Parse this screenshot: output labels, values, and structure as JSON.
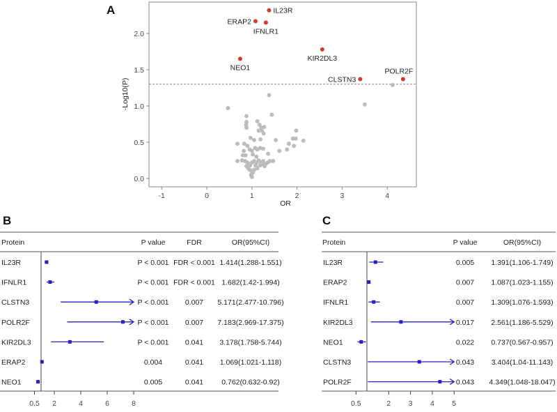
{
  "chart_data": [
    {
      "type": "scatter",
      "panel": "A",
      "xlabel": "OR",
      "ylabel": "-Log10(P)",
      "xlim": [
        -1.3,
        4.65
      ],
      "ylim": [
        -0.1,
        2.4
      ],
      "xticks": [
        "-1",
        "0",
        "1",
        "2",
        "3",
        "4"
      ],
      "yticks": [
        "0.0",
        "0.5",
        "1.0",
        "1.5",
        "2.0"
      ],
      "threshold": 1.3,
      "colors": {
        "significant": "#d33a2c",
        "other": "#bdbdbd",
        "threshold": "#888888"
      },
      "significant": [
        {
          "label": "IL23R",
          "x": 1.38,
          "y": 2.32
        },
        {
          "label": "ERAP2",
          "x": 1.08,
          "y": 2.17
        },
        {
          "label": "IFNLR1",
          "x": 1.31,
          "y": 2.15
        },
        {
          "label": "KIR2DL3",
          "x": 2.56,
          "y": 1.78
        },
        {
          "label": "NEO1",
          "x": 0.74,
          "y": 1.65
        },
        {
          "label": "CLSTN3",
          "x": 3.4,
          "y": 1.37
        },
        {
          "label": "POLR2F",
          "x": 4.35,
          "y": 1.37
        }
      ],
      "others": [
        [
          0.47,
          0.97
        ],
        [
          1.38,
          1.15
        ],
        [
          1.44,
          0.88
        ],
        [
          3.5,
          1.02
        ],
        [
          4.12,
          1.29
        ],
        [
          0.88,
          0.86
        ],
        [
          0.88,
          0.78
        ],
        [
          0.87,
          0.74
        ],
        [
          0.88,
          0.7
        ],
        [
          1.12,
          0.79
        ],
        [
          1.17,
          0.74
        ],
        [
          1.21,
          0.7
        ],
        [
          1.27,
          0.71
        ],
        [
          1.15,
          0.66
        ],
        [
          1.22,
          0.66
        ],
        [
          1.26,
          0.62
        ],
        [
          0.68,
          0.48
        ],
        [
          0.83,
          0.48
        ],
        [
          0.97,
          0.56
        ],
        [
          1.05,
          0.53
        ],
        [
          1.19,
          0.54
        ],
        [
          1.53,
          0.53
        ],
        [
          1.98,
          0.66
        ],
        [
          1.91,
          0.55
        ],
        [
          1.97,
          0.55
        ],
        [
          2.14,
          0.52
        ],
        [
          1.82,
          0.48
        ],
        [
          1.93,
          0.45
        ],
        [
          1.78,
          0.4
        ],
        [
          1.61,
          0.38
        ],
        [
          0.9,
          0.45
        ],
        [
          0.82,
          0.38
        ],
        [
          0.95,
          0.4
        ],
        [
          1.0,
          0.38
        ],
        [
          1.07,
          0.42
        ],
        [
          1.12,
          0.4
        ],
        [
          1.18,
          0.42
        ],
        [
          1.25,
          0.41
        ],
        [
          1.36,
          0.34
        ],
        [
          0.8,
          0.32
        ],
        [
          0.86,
          0.32
        ],
        [
          1.02,
          0.33
        ],
        [
          1.1,
          0.3
        ],
        [
          0.68,
          0.24
        ],
        [
          0.78,
          0.25
        ],
        [
          0.85,
          0.24
        ],
        [
          0.9,
          0.22
        ],
        [
          0.95,
          0.2
        ],
        [
          1.0,
          0.22
        ],
        [
          1.05,
          0.24
        ],
        [
          1.1,
          0.22
        ],
        [
          1.15,
          0.25
        ],
        [
          1.2,
          0.22
        ],
        [
          1.25,
          0.24
        ],
        [
          1.3,
          0.2
        ],
        [
          1.35,
          0.22
        ],
        [
          1.4,
          0.24
        ],
        [
          1.47,
          0.24
        ],
        [
          0.92,
          0.14
        ],
        [
          0.95,
          0.12
        ],
        [
          1.0,
          0.1
        ],
        [
          1.05,
          0.12
        ],
        [
          0.98,
          0.05
        ],
        [
          1.0,
          0.02
        ],
        [
          1.02,
          0.08
        ],
        [
          0.96,
          0.18
        ],
        [
          1.08,
          0.18
        ],
        [
          1.18,
          0.18
        ],
        [
          1.28,
          0.17
        ],
        [
          0.88,
          0.17
        ],
        [
          1.12,
          0.14
        ],
        [
          1.22,
          0.2
        ]
      ]
    },
    {
      "type": "forest",
      "panel": "B",
      "headers": [
        "Protein",
        "P value",
        "FDR",
        "OR(95%CI)"
      ],
      "xticks": [
        "0.5",
        "2",
        "4",
        "6",
        "8"
      ],
      "xmax": 8,
      "color": "#2a1fc4",
      "rows": [
        {
          "protein": "IL23R",
          "p": "P < 0.001",
          "fdr": "FDR < 0.001",
          "ci_text": "1.414(1.288-1.551)",
          "or": 1.414,
          "lo": 1.288,
          "hi": 1.551
        },
        {
          "protein": "IFNLR1",
          "p": "P < 0.001",
          "fdr": "FDR < 0.001",
          "ci_text": "1.682(1.42-1.994)",
          "or": 1.682,
          "lo": 1.42,
          "hi": 1.994
        },
        {
          "protein": "CLSTN3",
          "p": "P < 0.001",
          "fdr": "0.007",
          "ci_text": "5.171(2.477-10.796)",
          "or": 5.171,
          "lo": 2.477,
          "hi": 10.796
        },
        {
          "protein": "POLR2F",
          "p": "P < 0.001",
          "fdr": "0.007",
          "ci_text": "7.183(2.969-17.375)",
          "or": 7.183,
          "lo": 2.969,
          "hi": 17.375
        },
        {
          "protein": "KIR2DL3",
          "p": "P < 0.001",
          "fdr": "0.041",
          "ci_text": "3.178(1.758-5.744)",
          "or": 3.178,
          "lo": 1.758,
          "hi": 5.744
        },
        {
          "protein": "ERAP2",
          "p": "0.004",
          "fdr": "0.041",
          "ci_text": "1.069(1.021-1.118)",
          "or": 1.069,
          "lo": 1.021,
          "hi": 1.118
        },
        {
          "protein": "NEO1",
          "p": "0.005",
          "fdr": "0.041",
          "ci_text": "0.762(0.632-0.92)",
          "or": 0.762,
          "lo": 0.632,
          "hi": 0.92
        }
      ]
    },
    {
      "type": "forest",
      "panel": "C",
      "headers": [
        "Protein",
        "P value",
        "OR(95%CI)"
      ],
      "xticks": [
        "0.5",
        "2",
        "3",
        "4",
        "5"
      ],
      "xmax": 5,
      "color": "#2a1fc4",
      "rows": [
        {
          "protein": "IL23R",
          "p": "0.005",
          "ci_text": "1.391(1.106-1.749)",
          "or": 1.391,
          "lo": 1.106,
          "hi": 1.749
        },
        {
          "protein": "ERAP2",
          "p": "0.007",
          "ci_text": "1.087(1.023-1.155)",
          "or": 1.087,
          "lo": 1.023,
          "hi": 1.155
        },
        {
          "protein": "IFNLR1",
          "p": "0.007",
          "ci_text": "1.309(1.076-1.593)",
          "or": 1.309,
          "lo": 1.076,
          "hi": 1.593
        },
        {
          "protein": "KIR2DL3",
          "p": "0.017",
          "ci_text": "2.561(1.186-5.529)",
          "or": 2.561,
          "lo": 1.186,
          "hi": 5.529
        },
        {
          "protein": "NEO1",
          "p": "0.022",
          "ci_text": "0.737(0.567-0.957)",
          "or": 0.737,
          "lo": 0.567,
          "hi": 0.957
        },
        {
          "protein": "CLSTN3",
          "p": "0.043",
          "ci_text": "3.404(1.04-11.143)",
          "or": 3.404,
          "lo": 1.04,
          "hi": 11.143
        },
        {
          "protein": "POLR2F",
          "p": "0.043",
          "ci_text": "4.349(1.048-18.047)",
          "or": 4.349,
          "lo": 1.048,
          "hi": 18.047
        }
      ]
    }
  ]
}
